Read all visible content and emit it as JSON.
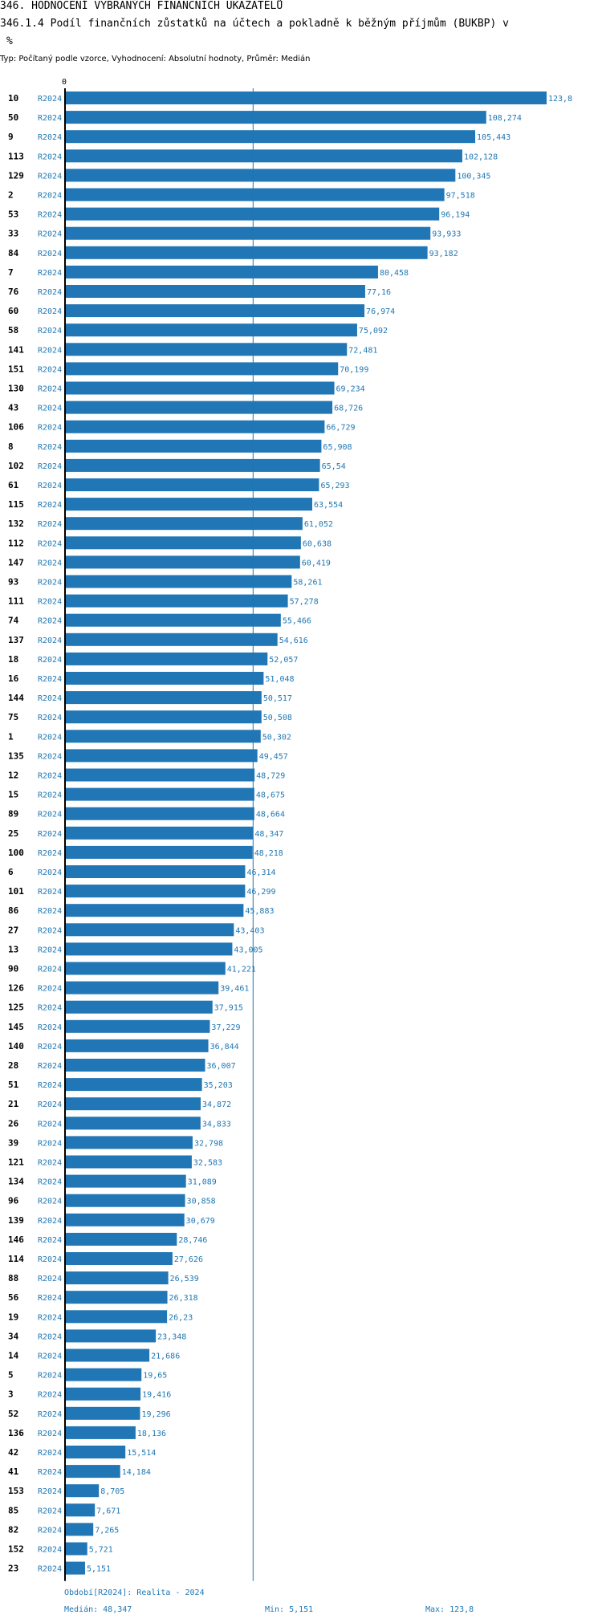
{
  "header": {
    "title_line1": "346. HODNOCENÍ VYBRANÝCH FINANČNÍCH UKAZATELŮ",
    "title_line2": "346.1.4 Podíl finančních zůstatků na účtech a pokladně k běžným příjmům (BUKBP) v",
    "title_line3": "%",
    "subtitle": "Typ: Počítaný podle vzorce, Vyhodnocení: Absolutní hodnoty, Průměr: Medián"
  },
  "footer": {
    "period": "Období[R2024]: Realita - 2024",
    "median": "Medián: 48,347",
    "min": "Min: 5,151",
    "max": "Max: 123,8"
  },
  "colors": {
    "bar": "#2176b5",
    "value_text": "#1f77b4",
    "period_text": "#1f77b4",
    "median_line": "#1f77b4"
  },
  "chart_data": {
    "type": "bar",
    "orientation": "horizontal",
    "axis_zero_label": "0",
    "median": 48.347,
    "xlim": [
      0,
      123.8
    ],
    "categories": [
      "10",
      "50",
      "9",
      "113",
      "129",
      "2",
      "53",
      "33",
      "84",
      "7",
      "76",
      "60",
      "58",
      "141",
      "151",
      "130",
      "43",
      "106",
      "8",
      "102",
      "61",
      "115",
      "132",
      "112",
      "147",
      "93",
      "111",
      "74",
      "137",
      "18",
      "16",
      "144",
      "75",
      "1",
      "135",
      "12",
      "15",
      "89",
      "25",
      "100",
      "6",
      "101",
      "86",
      "27",
      "13",
      "90",
      "126",
      "125",
      "145",
      "140",
      "28",
      "51",
      "21",
      "26",
      "39",
      "121",
      "134",
      "96",
      "139",
      "146",
      "114",
      "88",
      "56",
      "19",
      "34",
      "14",
      "5",
      "3",
      "52",
      "136",
      "42",
      "41",
      "153",
      "85",
      "82",
      "152",
      "23"
    ],
    "period_labels": [
      "R2024",
      "R2024",
      "R2024",
      "R2024",
      "R2024",
      "R2024",
      "R2024",
      "R2024",
      "R2024",
      "R2024",
      "R2024",
      "R2024",
      "R2024",
      "R2024",
      "R2024",
      "R2024",
      "R2024",
      "R2024",
      "R2024",
      "R2024",
      "R2024",
      "R2024",
      "R2024",
      "R2024",
      "R2024",
      "R2024",
      "R2024",
      "R2024",
      "R2024",
      "R2024",
      "R2024",
      "R2024",
      "R2024",
      "R2024",
      "R2024",
      "R2024",
      "R2024",
      "R2024",
      "R2024",
      "R2024",
      "R2024",
      "R2024",
      "R2024",
      "R2024",
      "R2024",
      "R2024",
      "R2024",
      "R2024",
      "R2024",
      "R2024",
      "R2024",
      "R2024",
      "R2024",
      "R2024",
      "R2024",
      "R2024",
      "R2024",
      "R2024",
      "R2024",
      "R2024",
      "R2024",
      "R2024",
      "R2024",
      "R2024",
      "R2024",
      "R2024",
      "R2024",
      "R2024",
      "R2024",
      "R2024",
      "R2024",
      "R2024",
      "R2024",
      "R2024",
      "R2024",
      "R2024",
      "R2024"
    ],
    "values": [
      123.8,
      108.274,
      105.443,
      102.128,
      100.345,
      97.518,
      96.194,
      93.933,
      93.182,
      80.458,
      77.16,
      76.974,
      75.092,
      72.481,
      70.199,
      69.234,
      68.726,
      66.729,
      65.908,
      65.54,
      65.293,
      63.554,
      61.052,
      60.638,
      60.419,
      58.261,
      57.278,
      55.466,
      54.616,
      52.057,
      51.048,
      50.517,
      50.508,
      50.302,
      49.457,
      48.729,
      48.675,
      48.664,
      48.347,
      48.218,
      46.314,
      46.299,
      45.883,
      43.403,
      43.005,
      41.221,
      39.461,
      37.915,
      37.229,
      36.844,
      36.007,
      35.203,
      34.872,
      34.833,
      32.798,
      32.583,
      31.089,
      30.858,
      30.679,
      28.746,
      27.626,
      26.539,
      26.318,
      26.23,
      23.348,
      21.686,
      19.65,
      19.416,
      19.296,
      18.136,
      15.514,
      14.184,
      8.705,
      7.671,
      7.265,
      5.721,
      5.151
    ],
    "value_labels": [
      "123,8",
      "108,274",
      "105,443",
      "102,128",
      "100,345",
      "97,518",
      "96,194",
      "93,933",
      "93,182",
      "80,458",
      "77,16",
      "76,974",
      "75,092",
      "72,481",
      "70,199",
      "69,234",
      "68,726",
      "66,729",
      "65,908",
      "65,54",
      "65,293",
      "63,554",
      "61,052",
      "60,638",
      "60,419",
      "58,261",
      "57,278",
      "55,466",
      "54,616",
      "52,057",
      "51,048",
      "50,517",
      "50,508",
      "50,302",
      "49,457",
      "48,729",
      "48,675",
      "48,664",
      "48,347",
      "48,218",
      "46,314",
      "46,299",
      "45,883",
      "43,403",
      "43,005",
      "41,221",
      "39,461",
      "37,915",
      "37,229",
      "36,844",
      "36,007",
      "35,203",
      "34,872",
      "34,833",
      "32,798",
      "32,583",
      "31,089",
      "30,858",
      "30,679",
      "28,746",
      "27,626",
      "26,539",
      "26,318",
      "26,23",
      "23,348",
      "21,686",
      "19,65",
      "19,416",
      "19,296",
      "18,136",
      "15,514",
      "14,184",
      "8,705",
      "7,671",
      "7,265",
      "5,721",
      "5,151"
    ]
  }
}
